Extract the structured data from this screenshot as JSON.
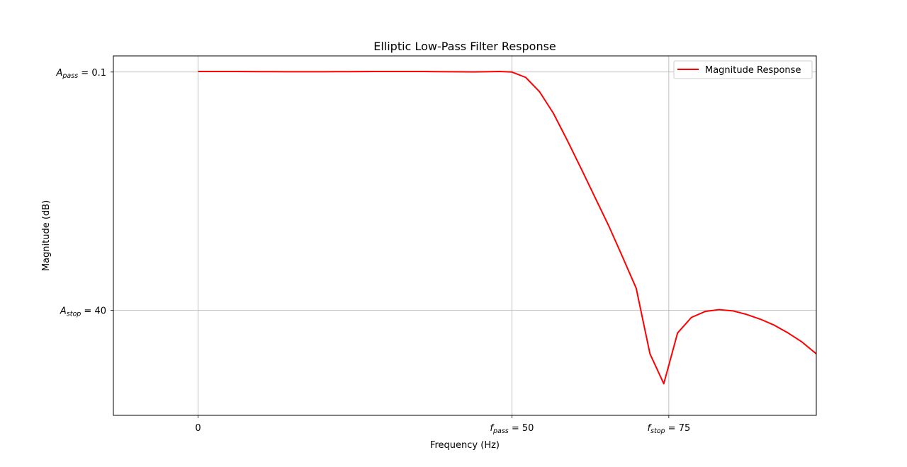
{
  "chart_data": {
    "type": "line",
    "title": "Elliptic Low-Pass Filter Response",
    "xlabel": "Frequency (Hz)",
    "ylabel": "Magnitude (dB)",
    "xlim": [
      -13.5,
      98.5
    ],
    "ylim": [
      -57.6,
      2.6
    ],
    "grid": true,
    "legend_position": "top-right",
    "x_ticks": [
      {
        "value": 0,
        "label": "0",
        "main": "",
        "sub": "",
        "suffix": ""
      },
      {
        "value": 50,
        "label": "f_pass = 50",
        "main": "f",
        "sub": "pass",
        "suffix": " = 50"
      },
      {
        "value": 75,
        "label": "f_stop = 75",
        "main": "f",
        "sub": "stop",
        "suffix": " = 75"
      }
    ],
    "y_ticks": [
      {
        "value": -0.1,
        "label": "A_pass = 0.1",
        "main": "A",
        "sub": "pass",
        "suffix": " = 0.1"
      },
      {
        "value": -40,
        "label": "A_stop = 40",
        "main": "A",
        "sub": "stop",
        "suffix": " = 40"
      }
    ],
    "series": [
      {
        "name": "Magnitude Response",
        "color": "#ff0000",
        "x": [
          0,
          2,
          4,
          6,
          8,
          10,
          12,
          14,
          16,
          18,
          20,
          22,
          24,
          26,
          28,
          30,
          32,
          34,
          36,
          38,
          40,
          42,
          44,
          46,
          48,
          50,
          52.2,
          54.4,
          56.6,
          58.8,
          61.0,
          63.2,
          65.4,
          67.6,
          69.8,
          72.0,
          74.2,
          76.4,
          78.6,
          80.8,
          83.0,
          85.2,
          87.4,
          89.6,
          91.8,
          94.0,
          96.2,
          98.5
        ],
        "y": [
          0,
          0,
          0,
          -0.01,
          -0.02,
          -0.03,
          -0.04,
          -0.05,
          -0.05,
          -0.05,
          -0.05,
          -0.04,
          -0.03,
          -0.02,
          -0.01,
          0,
          0,
          0,
          -0.01,
          -0.03,
          -0.05,
          -0.07,
          -0.08,
          -0.05,
          0,
          -0.1,
          -1.0,
          -3.4,
          -7.0,
          -11.5,
          -16.2,
          -21.0,
          -25.8,
          -31.0,
          -36.3,
          -47.3,
          -52.3,
          -43.8,
          -41.2,
          -40.2,
          -39.9,
          -40.1,
          -40.7,
          -41.5,
          -42.5,
          -43.8,
          -45.3,
          -47.3
        ]
      }
    ]
  }
}
